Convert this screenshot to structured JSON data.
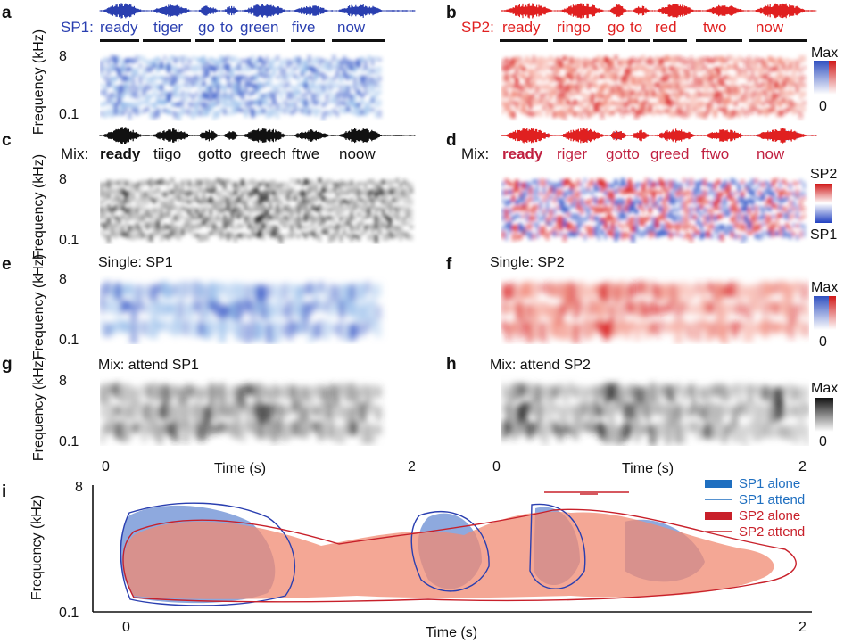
{
  "chart_data": {
    "type": "heatmap",
    "panels": {
      "a": {
        "label": "a",
        "speaker": "SP1:",
        "words": [
          "ready",
          "tiger",
          "go",
          "to",
          "green",
          "five",
          "now"
        ]
      },
      "b": {
        "label": "b",
        "speaker": "SP2:",
        "words": [
          "ready",
          "ringo",
          "go",
          "to",
          "red",
          "two",
          "now"
        ]
      },
      "c": {
        "label": "c",
        "speaker": "Mix:",
        "words": [
          "ready",
          "tiigo",
          "gotto",
          "greech",
          "ftwe",
          "noow"
        ]
      },
      "d": {
        "label": "d",
        "speaker": "Mix:",
        "words": [
          "ready",
          "riger",
          "gotto",
          "greed",
          "ftwo",
          "now"
        ]
      },
      "e": {
        "label": "e",
        "title": "Single: SP1"
      },
      "f": {
        "label": "f",
        "title": "Single: SP2"
      },
      "g": {
        "label": "g",
        "title": "Mix: attend SP1"
      },
      "h": {
        "label": "h",
        "title": "Mix: attend SP2"
      },
      "i": {
        "label": "i"
      }
    },
    "yaxis": {
      "label": "Frequency (kHz)",
      "ticks": [
        "8",
        "0.1"
      ]
    },
    "xaxis": {
      "label": "Time (s)",
      "ticks": [
        "0",
        "2"
      ]
    },
    "colorbars": {
      "speakers": {
        "top": "Max",
        "bottom": "0"
      },
      "diff": {
        "top": "SP2",
        "bottom": "SP1"
      },
      "gray": {
        "top": "Max",
        "bottom": "0"
      }
    },
    "legend": {
      "placement": "top-right",
      "entries": [
        "SP1 alone",
        "SP1 attend",
        "SP2 alone",
        "SP2 attend"
      ]
    },
    "colors": {
      "sp1": "#1f4fbf",
      "sp2": "#e02020",
      "sp1_light": "#7a9ad8",
      "sp2_light": "#f08a72"
    }
  }
}
